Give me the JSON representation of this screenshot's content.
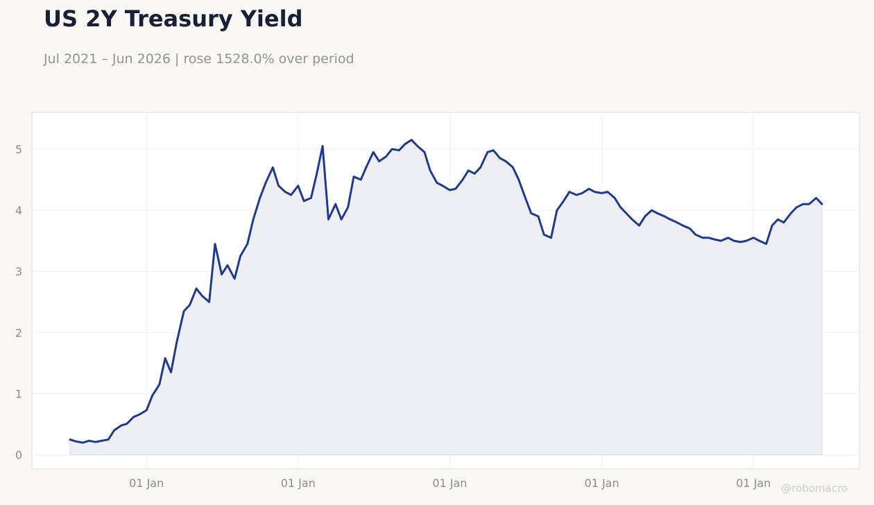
{
  "header": {
    "title": "US 2Y Treasury Yield",
    "subtitle": "Jul 2021 – Jun 2026 | rose 1528.0% over period"
  },
  "watermark": "@robomacro",
  "colors": {
    "line": "#1f3a8a",
    "area": "#eeeef5",
    "plot_background": "#ffffff",
    "page_background": "#f9f8f5",
    "grid": "#eeeeee"
  },
  "chart_data": {
    "type": "area",
    "title": "US 2Y Treasury Yield",
    "xlabel": "",
    "ylabel": "",
    "x_range": [
      "2021-07-01",
      "2026-06-15"
    ],
    "ylim": [
      -0.23,
      5.6
    ],
    "grid": true,
    "legend": "none",
    "y_ticks": [
      0,
      1,
      2,
      3,
      4,
      5
    ],
    "x_ticks": [
      {
        "date": "2022-01-01",
        "label": "01 Jan"
      },
      {
        "date": "2023-01-01",
        "label": "01 Jan"
      },
      {
        "date": "2024-01-01",
        "label": "01 Jan"
      },
      {
        "date": "2025-01-01",
        "label": "01 Jan"
      },
      {
        "date": "2026-01-01",
        "label": "01 Jan"
      }
    ],
    "series": [
      {
        "points": [
          [
            "2021-07-01",
            0.25
          ],
          [
            "2021-07-15",
            0.22
          ],
          [
            "2021-08-01",
            0.2
          ],
          [
            "2021-08-15",
            0.23
          ],
          [
            "2021-09-01",
            0.21
          ],
          [
            "2021-09-15",
            0.23
          ],
          [
            "2021-10-01",
            0.25
          ],
          [
            "2021-10-15",
            0.4
          ],
          [
            "2021-11-01",
            0.48
          ],
          [
            "2021-11-15",
            0.51
          ],
          [
            "2021-12-01",
            0.62
          ],
          [
            "2021-12-15",
            0.66
          ],
          [
            "2022-01-01",
            0.73
          ],
          [
            "2022-01-15",
            0.97
          ],
          [
            "2022-02-01",
            1.15
          ],
          [
            "2022-02-15",
            1.58
          ],
          [
            "2022-03-01",
            1.35
          ],
          [
            "2022-03-15",
            1.85
          ],
          [
            "2022-04-01",
            2.35
          ],
          [
            "2022-04-15",
            2.45
          ],
          [
            "2022-05-01",
            2.72
          ],
          [
            "2022-05-15",
            2.6
          ],
          [
            "2022-06-01",
            2.5
          ],
          [
            "2022-06-15",
            3.45
          ],
          [
            "2022-07-01",
            2.95
          ],
          [
            "2022-07-15",
            3.1
          ],
          [
            "2022-08-01",
            2.88
          ],
          [
            "2022-08-15",
            3.25
          ],
          [
            "2022-09-01",
            3.45
          ],
          [
            "2022-09-15",
            3.85
          ],
          [
            "2022-10-01",
            4.2
          ],
          [
            "2022-10-15",
            4.45
          ],
          [
            "2022-11-01",
            4.7
          ],
          [
            "2022-11-15",
            4.4
          ],
          [
            "2022-12-01",
            4.3
          ],
          [
            "2022-12-15",
            4.25
          ],
          [
            "2023-01-01",
            4.4
          ],
          [
            "2023-01-15",
            4.15
          ],
          [
            "2023-02-01",
            4.2
          ],
          [
            "2023-02-15",
            4.6
          ],
          [
            "2023-03-01",
            5.05
          ],
          [
            "2023-03-15",
            3.85
          ],
          [
            "2023-04-01",
            4.1
          ],
          [
            "2023-04-15",
            3.85
          ],
          [
            "2023-05-01",
            4.05
          ],
          [
            "2023-05-15",
            4.55
          ],
          [
            "2023-06-01",
            4.5
          ],
          [
            "2023-06-15",
            4.72
          ],
          [
            "2023-07-01",
            4.95
          ],
          [
            "2023-07-15",
            4.8
          ],
          [
            "2023-08-01",
            4.88
          ],
          [
            "2023-08-15",
            5.0
          ],
          [
            "2023-09-01",
            4.98
          ],
          [
            "2023-09-15",
            5.08
          ],
          [
            "2023-10-01",
            5.15
          ],
          [
            "2023-10-15",
            5.05
          ],
          [
            "2023-11-01",
            4.95
          ],
          [
            "2023-11-15",
            4.65
          ],
          [
            "2023-12-01",
            4.45
          ],
          [
            "2023-12-15",
            4.4
          ],
          [
            "2024-01-01",
            4.33
          ],
          [
            "2024-01-15",
            4.35
          ],
          [
            "2024-02-01",
            4.5
          ],
          [
            "2024-02-15",
            4.65
          ],
          [
            "2024-03-01",
            4.6
          ],
          [
            "2024-03-15",
            4.7
          ],
          [
            "2024-04-01",
            4.95
          ],
          [
            "2024-04-15",
            4.98
          ],
          [
            "2024-05-01",
            4.85
          ],
          [
            "2024-05-15",
            4.8
          ],
          [
            "2024-06-01",
            4.7
          ],
          [
            "2024-06-15",
            4.5
          ],
          [
            "2024-07-01",
            4.2
          ],
          [
            "2024-07-15",
            3.95
          ],
          [
            "2024-08-01",
            3.9
          ],
          [
            "2024-08-15",
            3.6
          ],
          [
            "2024-09-01",
            3.55
          ],
          [
            "2024-09-15",
            4.0
          ],
          [
            "2024-10-01",
            4.15
          ],
          [
            "2024-10-15",
            4.3
          ],
          [
            "2024-11-01",
            4.25
          ],
          [
            "2024-11-15",
            4.28
          ],
          [
            "2024-12-01",
            4.35
          ],
          [
            "2024-12-15",
            4.3
          ],
          [
            "2025-01-01",
            4.28
          ],
          [
            "2025-01-15",
            4.3
          ],
          [
            "2025-02-01",
            4.2
          ],
          [
            "2025-02-15",
            4.05
          ],
          [
            "2025-03-01",
            3.95
          ],
          [
            "2025-03-15",
            3.85
          ],
          [
            "2025-04-01",
            3.75
          ],
          [
            "2025-04-15",
            3.9
          ],
          [
            "2025-05-01",
            4.0
          ],
          [
            "2025-05-15",
            3.95
          ],
          [
            "2025-06-01",
            3.9
          ],
          [
            "2025-06-15",
            3.85
          ],
          [
            "2025-07-01",
            3.8
          ],
          [
            "2025-07-15",
            3.75
          ],
          [
            "2025-08-01",
            3.7
          ],
          [
            "2025-08-15",
            3.6
          ],
          [
            "2025-09-01",
            3.55
          ],
          [
            "2025-09-15",
            3.55
          ],
          [
            "2025-10-01",
            3.52
          ],
          [
            "2025-10-15",
            3.5
          ],
          [
            "2025-11-01",
            3.55
          ],
          [
            "2025-11-15",
            3.5
          ],
          [
            "2025-12-01",
            3.48
          ],
          [
            "2025-12-15",
            3.5
          ],
          [
            "2026-01-01",
            3.55
          ],
          [
            "2026-01-15",
            3.5
          ],
          [
            "2026-02-01",
            3.45
          ],
          [
            "2026-02-15",
            3.75
          ],
          [
            "2026-03-01",
            3.85
          ],
          [
            "2026-03-15",
            3.8
          ],
          [
            "2026-04-01",
            3.95
          ],
          [
            "2026-04-15",
            4.05
          ],
          [
            "2026-05-01",
            4.1
          ],
          [
            "2026-05-15",
            4.1
          ],
          [
            "2026-06-01",
            4.2
          ],
          [
            "2026-06-15",
            4.1
          ]
        ]
      }
    ]
  }
}
